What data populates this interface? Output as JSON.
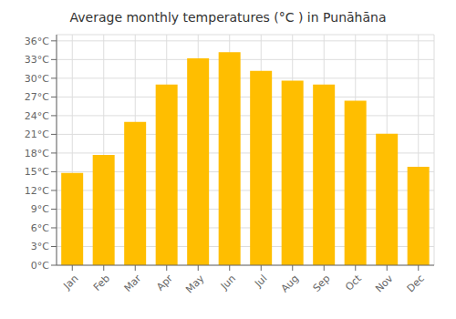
{
  "chart_data": {
    "type": "bar",
    "title": "Average monthly temperatures (°C ) in Punāhāna",
    "categories": [
      "Jan",
      "Feb",
      "Mar",
      "Apr",
      "May",
      "Jun",
      "Jul",
      "Aug",
      "Sep",
      "Oct",
      "Nov",
      "Dec"
    ],
    "values": [
      14.8,
      17.7,
      23.0,
      29.0,
      33.2,
      34.2,
      31.2,
      29.6,
      29.0,
      26.4,
      21.1,
      15.8
    ],
    "color": "#FFBE00",
    "ylim": [
      0,
      37
    ],
    "yticks": [
      {
        "value": 0,
        "label": "0°C"
      },
      {
        "value": 3,
        "label": "3°C"
      },
      {
        "value": 6,
        "label": "6°C"
      },
      {
        "value": 9,
        "label": "9°C"
      },
      {
        "value": 12,
        "label": "12°C"
      },
      {
        "value": 15,
        "label": "15°C"
      },
      {
        "value": 18,
        "label": "18°C"
      },
      {
        "value": 21,
        "label": "21°C"
      },
      {
        "value": 24,
        "label": "24°C"
      },
      {
        "value": 27,
        "label": "27°C"
      },
      {
        "value": 30,
        "label": "30°C"
      },
      {
        "value": 33,
        "label": "33°C"
      },
      {
        "value": 36,
        "label": "36°C"
      }
    ],
    "grid": true
  }
}
